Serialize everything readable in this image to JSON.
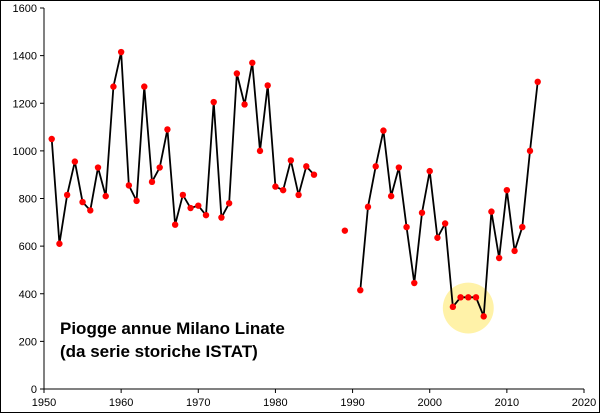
{
  "chart_data": {
    "type": "line",
    "title": "",
    "xlabel": "",
    "ylabel": "",
    "xlim": [
      1950,
      2020
    ],
    "ylim": [
      0,
      1600
    ],
    "x_ticks": [
      "1950",
      "1960",
      "1970",
      "1980",
      "1990",
      "2000",
      "2010",
      "2020"
    ],
    "y_ticks": [
      "0",
      "200",
      "400",
      "600",
      "800",
      "1000",
      "1200",
      "1400",
      "1600"
    ],
    "grid": false,
    "line_color": "#000000",
    "marker_color": "#ff0000",
    "highlight_color": "#fff2a8",
    "annotation_lines": [
      "Piogge annue Milano Linate",
      "(da serie storiche ISTAT)"
    ],
    "highlight": {
      "x": 2005,
      "y": 340,
      "radius_years": 3.3
    },
    "series": [
      {
        "name": "",
        "x": [
          1951,
          1952,
          1953,
          1954,
          1955,
          1956,
          1957,
          1958,
          1959,
          1960,
          1961,
          1962,
          1963,
          1964,
          1965,
          1966,
          1967,
          1968,
          1969,
          1970,
          1971,
          1972,
          1973,
          1974,
          1975,
          1976,
          1977,
          1978,
          1979,
          1980,
          1981,
          1982,
          1983,
          1984,
          1985,
          1989,
          1991,
          1992,
          1993,
          1994,
          1995,
          1996,
          1997,
          1998,
          1999,
          2000,
          2001,
          2002,
          2003,
          2004,
          2005,
          2006,
          2007,
          2008,
          2009,
          2010,
          2011,
          2012,
          2013,
          2014
        ],
        "y": [
          1050,
          610,
          815,
          955,
          785,
          750,
          930,
          810,
          1270,
          1415,
          855,
          790,
          1270,
          870,
          930,
          1090,
          690,
          815,
          760,
          770,
          730,
          1205,
          720,
          780,
          1325,
          1195,
          1370,
          1000,
          1275,
          850,
          835,
          960,
          815,
          935,
          900,
          665,
          415,
          765,
          935,
          1085,
          810,
          930,
          680,
          445,
          740,
          915,
          635,
          695,
          345,
          385,
          385,
          385,
          305,
          745,
          550,
          835,
          580,
          680,
          1000,
          1290
        ],
        "breaks_after": [
          1985,
          1989
        ]
      }
    ]
  }
}
